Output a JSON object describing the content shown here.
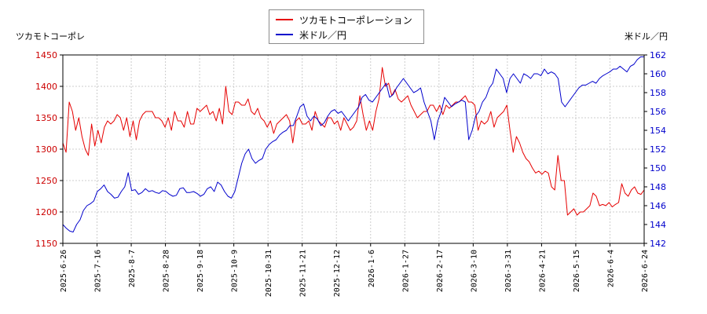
{
  "chart_data": {
    "type": "line",
    "x_ticks": [
      "2025-6-26",
      "2025-7-16",
      "2025-8-7",
      "2025-8-28",
      "2025-9-18",
      "2025-10-9",
      "2025-10-31",
      "2025-11-21",
      "2025-12-12",
      "2026-1-6",
      "2026-1-27",
      "2026-2-17",
      "2026-3-10",
      "2026-3-31",
      "2026-4-21",
      "2026-5-15",
      "2026-6-4",
      "2026-6-24"
    ],
    "left_axis": {
      "label": "ツカモトコーポレ",
      "ylim": [
        1150,
        1450
      ],
      "ticks": [
        1150,
        1200,
        1250,
        1300,
        1350,
        1400,
        1450
      ]
    },
    "right_axis": {
      "label": "米ドル／円",
      "ylim": [
        142,
        162
      ],
      "ticks": [
        142,
        144,
        146,
        148,
        150,
        152,
        154,
        156,
        158,
        160,
        162
      ]
    },
    "grid": true,
    "legend_position": "top-center",
    "series": [
      {
        "name": "ツカモトコーポレーション",
        "axis": "left",
        "color": "#e60000",
        "values": [
          1310,
          1295,
          1375,
          1360,
          1330,
          1350,
          1320,
          1300,
          1290,
          1340,
          1305,
          1330,
          1310,
          1335,
          1345,
          1340,
          1345,
          1355,
          1350,
          1330,
          1350,
          1320,
          1345,
          1315,
          1345,
          1355,
          1360,
          1360,
          1360,
          1350,
          1350,
          1345,
          1335,
          1350,
          1330,
          1360,
          1345,
          1345,
          1335,
          1360,
          1340,
          1340,
          1365,
          1360,
          1365,
          1370,
          1355,
          1360,
          1345,
          1365,
          1340,
          1400,
          1360,
          1355,
          1375,
          1375,
          1370,
          1370,
          1380,
          1360,
          1355,
          1365,
          1350,
          1345,
          1335,
          1345,
          1325,
          1340,
          1345,
          1350,
          1355,
          1345,
          1310,
          1345,
          1350,
          1340,
          1340,
          1345,
          1330,
          1360,
          1345,
          1340,
          1335,
          1350,
          1350,
          1340,
          1345,
          1330,
          1350,
          1340,
          1330,
          1335,
          1345,
          1385,
          1355,
          1330,
          1345,
          1330,
          1360,
          1380,
          1430,
          1400,
          1405,
          1385,
          1395,
          1380,
          1375,
          1380,
          1385,
          1370,
          1360,
          1350,
          1355,
          1360,
          1360,
          1370,
          1370,
          1360,
          1370,
          1355,
          1370,
          1365,
          1370,
          1375,
          1375,
          1380,
          1385,
          1375,
          1375,
          1370,
          1330,
          1345,
          1340,
          1345,
          1360,
          1335,
          1350,
          1355,
          1360,
          1370,
          1330,
          1295,
          1320,
          1310,
          1295,
          1285,
          1280,
          1270,
          1262,
          1265,
          1260,
          1265,
          1262,
          1240,
          1235,
          1290,
          1250,
          1250,
          1195,
          1200,
          1205,
          1195,
          1200,
          1200,
          1205,
          1210,
          1230,
          1225,
          1210,
          1212,
          1210,
          1215,
          1208,
          1212,
          1215,
          1245,
          1230,
          1225,
          1235,
          1240,
          1230,
          1228,
          1235
        ]
      },
      {
        "name": "米ドル／円",
        "axis": "right",
        "color": "#0000cc",
        "values": [
          144.0,
          143.6,
          143.3,
          143.2,
          144.0,
          144.5,
          145.5,
          146.0,
          146.2,
          146.5,
          147.5,
          147.8,
          148.2,
          147.5,
          147.2,
          146.8,
          146.9,
          147.5,
          148.0,
          149.5,
          147.6,
          147.7,
          147.2,
          147.4,
          147.8,
          147.5,
          147.6,
          147.4,
          147.3,
          147.6,
          147.5,
          147.2,
          147.0,
          147.1,
          147.8,
          147.9,
          147.4,
          147.4,
          147.5,
          147.3,
          147.0,
          147.2,
          147.8,
          148.0,
          147.5,
          148.5,
          148.2,
          147.5,
          147.0,
          146.8,
          147.5,
          149.0,
          150.5,
          151.5,
          152.0,
          151.0,
          150.5,
          150.8,
          151.0,
          152.0,
          152.5,
          152.8,
          153.0,
          153.5,
          153.8,
          154.0,
          154.5,
          154.5,
          155.5,
          156.5,
          156.8,
          155.5,
          155.0,
          155.5,
          155.2,
          154.5,
          154.8,
          155.5,
          156.0,
          156.2,
          155.8,
          156.0,
          155.5,
          155.0,
          155.5,
          156.0,
          156.5,
          157.5,
          157.8,
          157.2,
          157.0,
          157.5,
          158.0,
          158.5,
          159.0,
          157.5,
          157.8,
          158.5,
          159.0,
          159.5,
          159.0,
          158.5,
          158.0,
          158.2,
          158.5,
          157.0,
          156.0,
          155.0,
          153.0,
          155.0,
          156.0,
          157.5,
          157.0,
          156.5,
          156.8,
          157.0,
          157.2,
          157.0,
          153.0,
          154.0,
          155.5,
          156.0,
          157.0,
          157.5,
          158.5,
          159.0,
          160.5,
          160.0,
          159.5,
          158.0,
          159.5,
          160.0,
          159.5,
          159.0,
          160.0,
          159.8,
          159.5,
          160.0,
          160.0,
          159.8,
          160.5,
          160.0,
          160.2,
          160.0,
          159.5,
          157.0,
          156.5,
          157.0,
          157.5,
          158.0,
          158.5,
          158.8,
          158.8,
          159.0,
          159.2,
          159.0,
          159.5,
          159.8,
          160.0,
          160.2,
          160.5,
          160.5,
          160.8,
          160.5,
          160.2,
          160.8,
          161.0,
          161.5,
          161.8,
          161.8
        ]
      }
    ]
  }
}
